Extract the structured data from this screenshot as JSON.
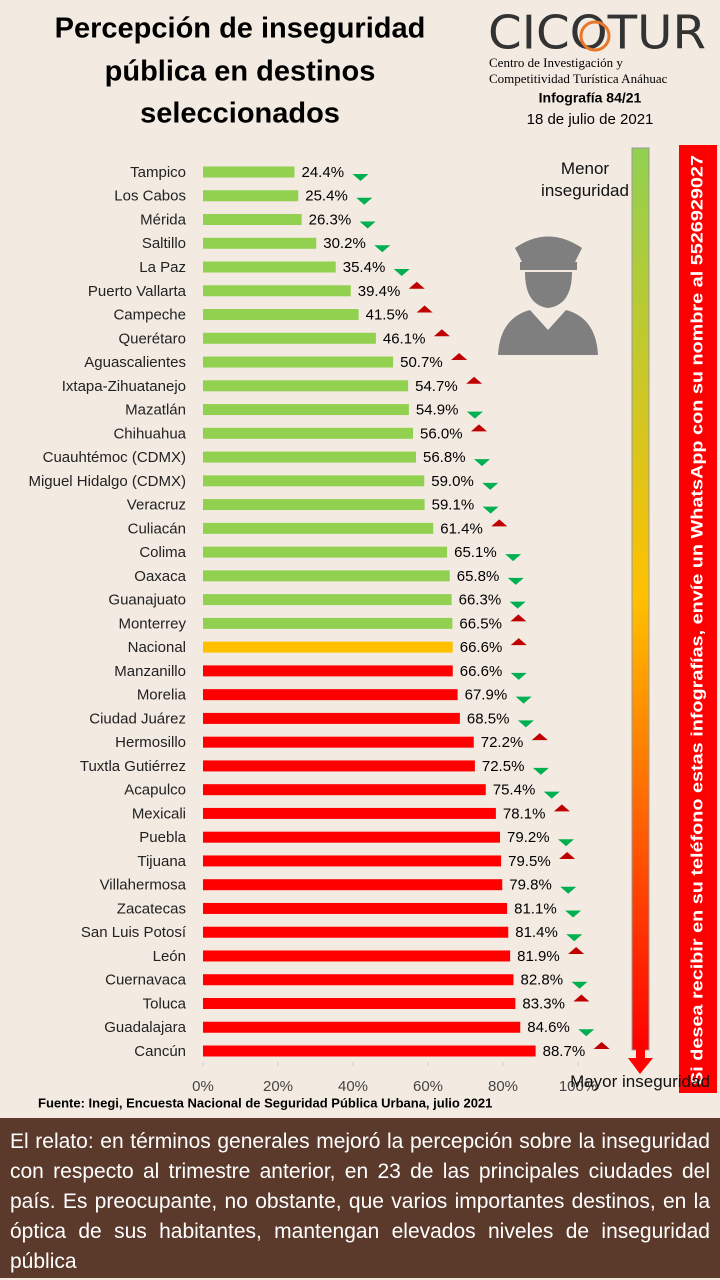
{
  "header": {
    "title": [
      "Percepción de inseguridad",
      "pública en destinos",
      "seleccionados"
    ],
    "logo": "CICOTUR",
    "logo_subtitle": [
      "Centro de Investigación y",
      "Competitividad Turística Anáhuac"
    ],
    "issue": "Infografía 84/21",
    "date": "18 de julio de 2021"
  },
  "chart_data": {
    "type": "bar",
    "orientation": "horizontal",
    "categories": [
      "Tampico",
      "Los Cabos",
      "Mérida",
      "Saltillo",
      "La Paz",
      "Puerto Vallarta",
      "Campeche",
      "Querétaro",
      "Aguascalientes",
      "Ixtapa-Zihuatanejo",
      "Mazatlán",
      "Chihuahua",
      "Cuauhtémoc (CDMX)",
      "Miguel Hidalgo (CDMX)",
      "Veracruz",
      "Culiacán",
      "Colima",
      "Oaxaca",
      "Guanajuato",
      "Monterrey",
      "Nacional",
      "Manzanillo",
      "Morelia",
      "Ciudad Juárez",
      "Hermosillo",
      "Tuxtla Gutiérrez",
      "Acapulco",
      "Mexicali",
      "Puebla",
      "Tijuana",
      "Villahermosa",
      "Zacatecas",
      "San Luis Potosí",
      "León",
      "Cuernavaca",
      "Toluca",
      "Guadalajara",
      "Cancún"
    ],
    "values": [
      24.4,
      25.4,
      26.3,
      30.2,
      35.4,
      39.4,
      41.5,
      46.1,
      50.7,
      54.7,
      54.9,
      56.0,
      56.8,
      59.0,
      59.1,
      61.4,
      65.1,
      65.8,
      66.3,
      66.5,
      66.6,
      66.6,
      67.9,
      68.5,
      72.2,
      72.5,
      75.4,
      78.1,
      79.2,
      79.5,
      79.8,
      81.1,
      81.4,
      81.9,
      82.8,
      83.3,
      84.6,
      88.7
    ],
    "value_labels": [
      "24.4%",
      "25.4%",
      "26.3%",
      "30.2%",
      "35.4%",
      "39.4%",
      "41.5%",
      "46.1%",
      "50.7%",
      "54.7%",
      "54.9%",
      "56.0%",
      "56.8%",
      "59.0%",
      "59.1%",
      "61.4%",
      "65.1%",
      "65.8%",
      "66.3%",
      "66.5%",
      "66.6%",
      "66.6%",
      "67.9%",
      "68.5%",
      "72.2%",
      "72.5%",
      "75.4%",
      "78.1%",
      "79.2%",
      "79.5%",
      "79.8%",
      "81.1%",
      "81.4%",
      "81.9%",
      "82.8%",
      "83.3%",
      "84.6%",
      "88.7%"
    ],
    "colors": [
      "#92d050",
      "#92d050",
      "#92d050",
      "#92d050",
      "#92d050",
      "#92d050",
      "#92d050",
      "#92d050",
      "#92d050",
      "#92d050",
      "#92d050",
      "#92d050",
      "#92d050",
      "#92d050",
      "#92d050",
      "#92d050",
      "#92d050",
      "#92d050",
      "#92d050",
      "#92d050",
      "#ffc000",
      "#ff0000",
      "#ff0000",
      "#ff0000",
      "#ff0000",
      "#ff0000",
      "#ff0000",
      "#ff0000",
      "#ff0000",
      "#ff0000",
      "#ff0000",
      "#ff0000",
      "#ff0000",
      "#ff0000",
      "#ff0000",
      "#ff0000",
      "#ff0000",
      "#ff0000"
    ],
    "trend": [
      "down",
      "down",
      "down",
      "down",
      "down",
      "up",
      "up",
      "up",
      "up",
      "up",
      "down",
      "up",
      "down",
      "down",
      "down",
      "up",
      "down",
      "down",
      "down",
      "up",
      "up",
      "down",
      "down",
      "down",
      "up",
      "down",
      "down",
      "up",
      "down",
      "up",
      "down",
      "down",
      "down",
      "up",
      "down",
      "up",
      "down",
      "up"
    ],
    "xlim": [
      0,
      100
    ],
    "xticks": [
      {
        "value": 0,
        "label": "0%"
      },
      {
        "value": 20,
        "label": "20%"
      },
      {
        "value": 40,
        "label": "40%"
      },
      {
        "value": 60,
        "label": "60%"
      },
      {
        "value": 80,
        "label": "80%"
      },
      {
        "value": 100,
        "label": "100%"
      }
    ]
  },
  "scale": {
    "top": "Menor inseguridad",
    "bottom": "Mayor inseguridad"
  },
  "banner": "Si desea recibir en su teléfono estas infografías, envíe un WhatsApp con su nombre al 5526929027",
  "source": "Fuente: Inegi,  Encuesta Nacional de Seguridad Pública Urbana, julio 2021",
  "summary": "El relato: en términos generales mejoró la percepción sobre la inseguridad con respecto al trimestre anterior, en 23 de las principales ciudades del país. Es preocupante, no obstante, que varios importantes destinos, en la óptica de sus habitantes, mantengan elevados niveles de inseguridad pública"
}
